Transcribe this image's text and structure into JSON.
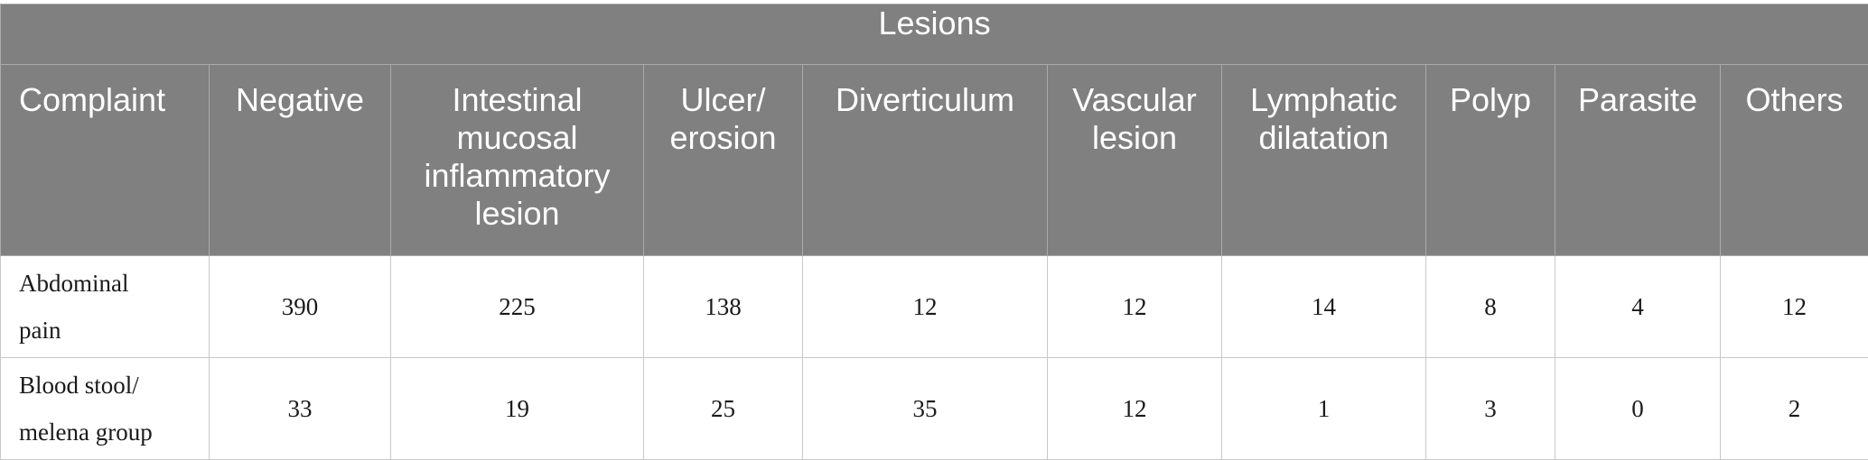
{
  "table": {
    "group_header": "Lesions",
    "columns": [
      "Complaint",
      "Negative",
      "Intestinal\nmucosal\ninflammatory\nlesion",
      "Ulcer/\nerosion",
      "Diverticulum",
      "Vascular\nlesion",
      "Lymphatic\ndilatation",
      "Polyp",
      "Parasite",
      "Others"
    ],
    "rows": [
      {
        "complaint": "Abdominal\npain",
        "values": [
          "390",
          "225",
          "138",
          "12",
          "12",
          "14",
          "8",
          "4",
          "12"
        ]
      },
      {
        "complaint": "Blood stool/\nmelena group",
        "values": [
          "33",
          "19",
          "25",
          "35",
          "12",
          "1",
          "3",
          "0",
          "2"
        ]
      }
    ]
  }
}
